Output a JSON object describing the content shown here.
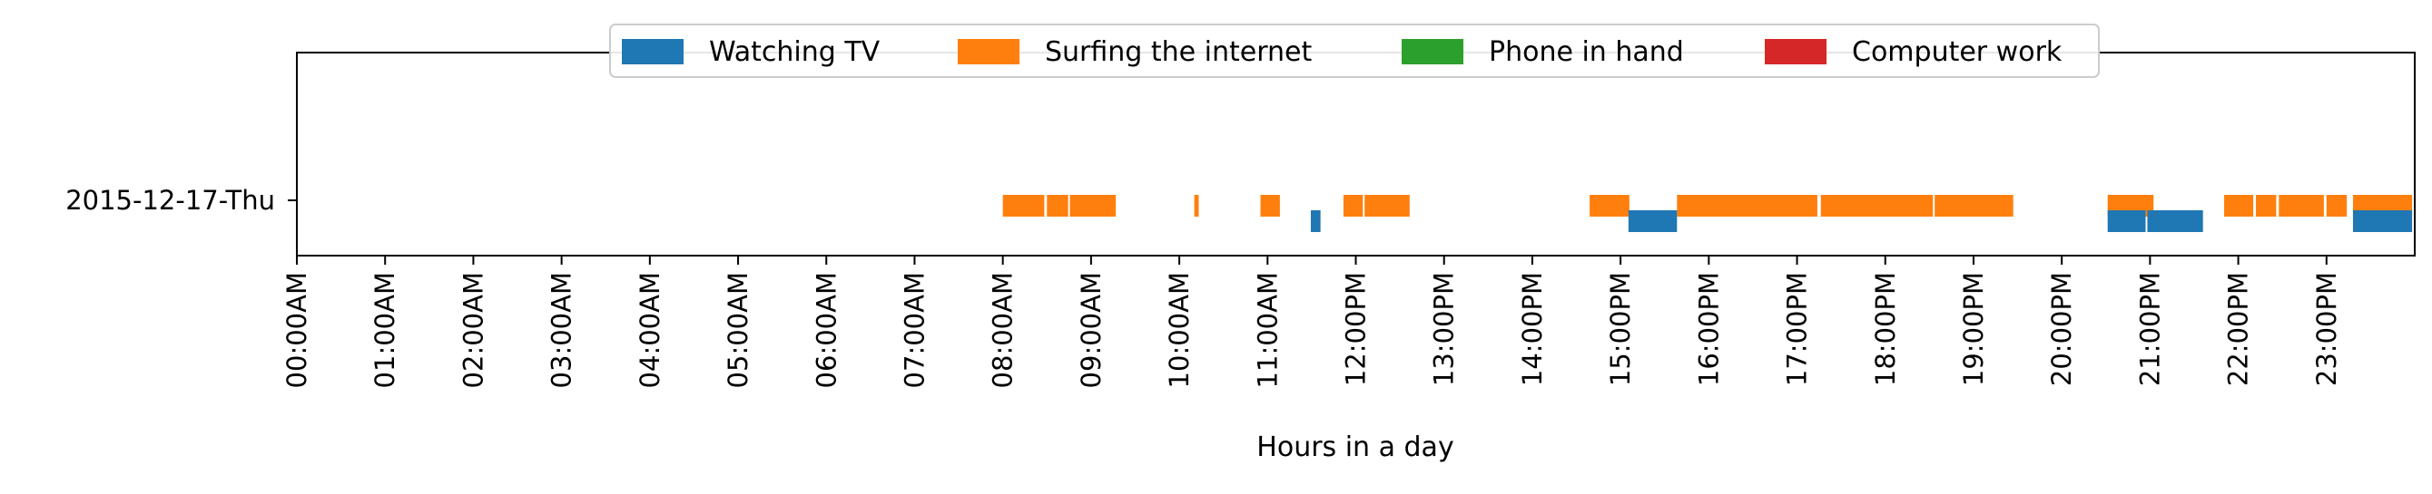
{
  "chart_data": {
    "type": "timeline",
    "xlabel": "Hours in a day",
    "xlim": [
      0,
      24
    ],
    "y_categories": [
      "2015-12-17-Thu"
    ],
    "x_ticks": [
      {
        "value": 0,
        "label": "00:00AM"
      },
      {
        "value": 1,
        "label": "01:00AM"
      },
      {
        "value": 2,
        "label": "02:00AM"
      },
      {
        "value": 3,
        "label": "03:00AM"
      },
      {
        "value": 4,
        "label": "04:00AM"
      },
      {
        "value": 5,
        "label": "05:00AM"
      },
      {
        "value": 6,
        "label": "06:00AM"
      },
      {
        "value": 7,
        "label": "07:00AM"
      },
      {
        "value": 8,
        "label": "08:00AM"
      },
      {
        "value": 9,
        "label": "09:00AM"
      },
      {
        "value": 10,
        "label": "10:00AM"
      },
      {
        "value": 11,
        "label": "11:00AM"
      },
      {
        "value": 12,
        "label": "12:00PM"
      },
      {
        "value": 13,
        "label": "13:00PM"
      },
      {
        "value": 14,
        "label": "14:00PM"
      },
      {
        "value": 15,
        "label": "15:00PM"
      },
      {
        "value": 16,
        "label": "16:00PM"
      },
      {
        "value": 17,
        "label": "17:00PM"
      },
      {
        "value": 18,
        "label": "18:00PM"
      },
      {
        "value": 19,
        "label": "19:00PM"
      },
      {
        "value": 20,
        "label": "20:00PM"
      },
      {
        "value": 21,
        "label": "21:00PM"
      },
      {
        "value": 22,
        "label": "22:00PM"
      },
      {
        "value": 23,
        "label": "23:00PM"
      }
    ],
    "legend": {
      "placement": "top-center",
      "entries": [
        {
          "name": "Watching TV",
          "color": "#1f77b4"
        },
        {
          "name": "Surfing the internet",
          "color": "#ff7f0e"
        },
        {
          "name": "Phone in hand",
          "color": "#2ca02c"
        },
        {
          "name": "Computer work",
          "color": "#d62728"
        }
      ]
    },
    "series": [
      {
        "name": "Surfing the internet",
        "color": "#ff7f0e",
        "lane": "upper",
        "intervals": [
          [
            8.0,
            8.47
          ],
          [
            8.5,
            8.74
          ],
          [
            8.76,
            9.28
          ],
          [
            10.17,
            10.22
          ],
          [
            10.92,
            11.14
          ],
          [
            11.86,
            12.08
          ],
          [
            12.1,
            12.61
          ],
          [
            14.65,
            15.1
          ],
          [
            15.64,
            17.23
          ],
          [
            17.27,
            18.54
          ],
          [
            18.56,
            19.45
          ],
          [
            20.52,
            21.04
          ],
          [
            21.84,
            22.17
          ],
          [
            22.2,
            22.43
          ],
          [
            22.46,
            22.97
          ],
          [
            23.0,
            23.23
          ],
          [
            23.3,
            23.97
          ]
        ]
      },
      {
        "name": "Watching TV",
        "color": "#1f77b4",
        "lane": "lower",
        "intervals": [
          [
            11.49,
            11.6
          ],
          [
            15.09,
            15.64
          ],
          [
            20.52,
            20.95
          ],
          [
            20.97,
            21.6
          ],
          [
            23.3,
            23.97
          ]
        ]
      },
      {
        "name": "Phone in hand",
        "color": "#2ca02c",
        "lane": "lower",
        "intervals": []
      },
      {
        "name": "Computer work",
        "color": "#d62728",
        "lane": "lower",
        "intervals": []
      }
    ]
  }
}
